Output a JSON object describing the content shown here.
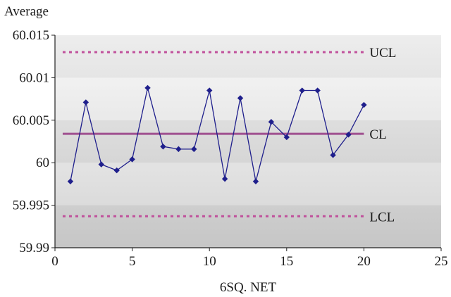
{
  "chart_data": {
    "type": "line",
    "title": "",
    "ylabel": "Average",
    "xlabel": "6SQ. NET",
    "xlim": [
      0,
      25
    ],
    "ylim": [
      59.99,
      60.015
    ],
    "x_ticks": [
      0,
      5,
      10,
      15,
      20,
      25
    ],
    "y_ticks": [
      59.99,
      59.995,
      60,
      60.005,
      60.01,
      60.015
    ],
    "x_tick_labels": [
      "0",
      "5",
      "10",
      "15",
      "20",
      "25"
    ],
    "y_tick_labels": [
      "59.99",
      "59.995",
      "60",
      "60.005",
      "60.01",
      "60.015"
    ],
    "grid": false,
    "series": [
      {
        "x": [
          1,
          2,
          3,
          4,
          5,
          6,
          7,
          8,
          9,
          10,
          11,
          12,
          13,
          14,
          15,
          16,
          17,
          18,
          19,
          20
        ],
        "values": [
          59.9978,
          60.0071,
          59.9998,
          59.9991,
          60.0004,
          60.0088,
          60.0019,
          60.0016,
          60.0016,
          60.0085,
          59.9981,
          60.0076,
          59.9978,
          60.0048,
          60.003,
          60.0085,
          60.0085,
          60.0009,
          60.0033,
          60.0068
        ],
        "color": "#1f1f8c",
        "marker": "diamond"
      }
    ],
    "reference_lines": [
      {
        "label": "UCL",
        "value": 60.013,
        "style": "dotted",
        "color": "#c0509b"
      },
      {
        "label": "CL",
        "value": 60.0034,
        "style": "solid",
        "color": "#a0508f"
      },
      {
        "label": "LCL",
        "value": 59.9937,
        "style": "dotted",
        "color": "#c0509b"
      }
    ]
  }
}
